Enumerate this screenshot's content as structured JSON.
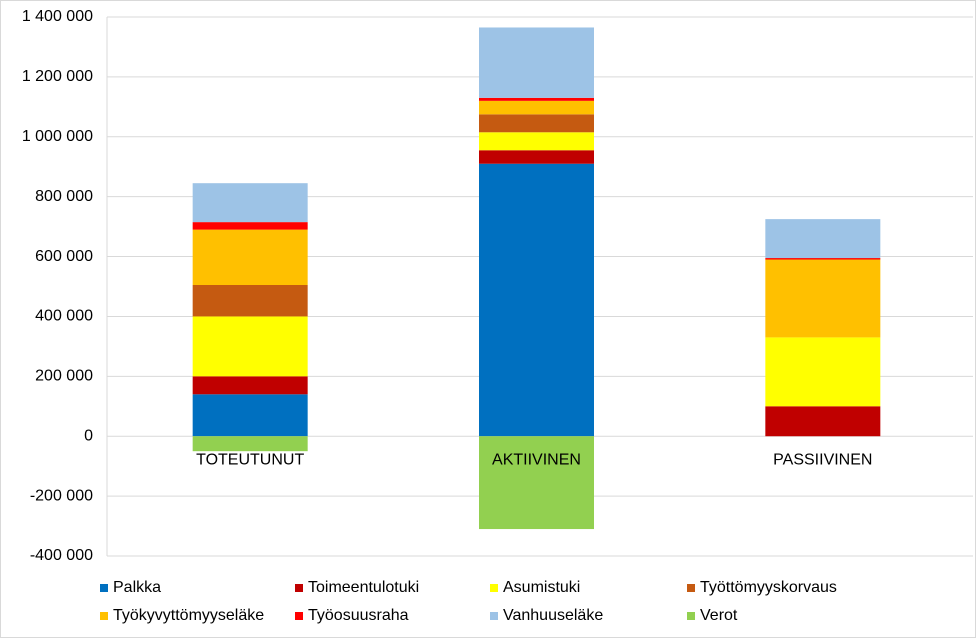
{
  "chart_data": {
    "type": "stacked-bar",
    "categories": [
      "TOTEUTUNUT",
      "AKTIIVINEN",
      "PASSIIVINEN"
    ],
    "series": [
      {
        "name": "Palkka",
        "color": "#0070c0",
        "values": [
          140000,
          910000,
          0
        ]
      },
      {
        "name": "Toimeentulotuki",
        "color": "#c00000",
        "values": [
          60000,
          45000,
          100000
        ]
      },
      {
        "name": "Asumistuki",
        "color": "#ffff00",
        "values": [
          200000,
          60000,
          230000
        ]
      },
      {
        "name": "Työttömyyskorvaus",
        "color": "#c55a11",
        "values": [
          105000,
          60000,
          0
        ]
      },
      {
        "name": "Työkyvyttömyyseläke",
        "color": "#ffc000",
        "values": [
          185000,
          45000,
          260000
        ]
      },
      {
        "name": "Työosuusraha",
        "color": "#ff0000",
        "values": [
          25000,
          10000,
          5000
        ]
      },
      {
        "name": "Vanhuuseläke",
        "color": "#9dc3e6",
        "values": [
          130000,
          235000,
          130000
        ]
      },
      {
        "name": "Verot",
        "color": "#92d050",
        "values": [
          -50000,
          -310000,
          0
        ]
      }
    ],
    "ylim": [
      -400000,
      1400000
    ],
    "yticks": [
      {
        "value": -400000,
        "label": "-400 000"
      },
      {
        "value": -200000,
        "label": "-200 000"
      },
      0,
      {
        "value": 200000,
        "label": "200 000"
      },
      {
        "value": 400000,
        "label": "400 000"
      },
      {
        "value": 600000,
        "label": "600 000"
      },
      {
        "value": 800000,
        "label": "800 000"
      },
      {
        "value": 1000000,
        "label": "1 000 000"
      },
      {
        "value": 1200000,
        "label": "1 200 000"
      },
      {
        "value": 1400000,
        "label": "1 400 000"
      }
    ],
    "grid": true
  }
}
